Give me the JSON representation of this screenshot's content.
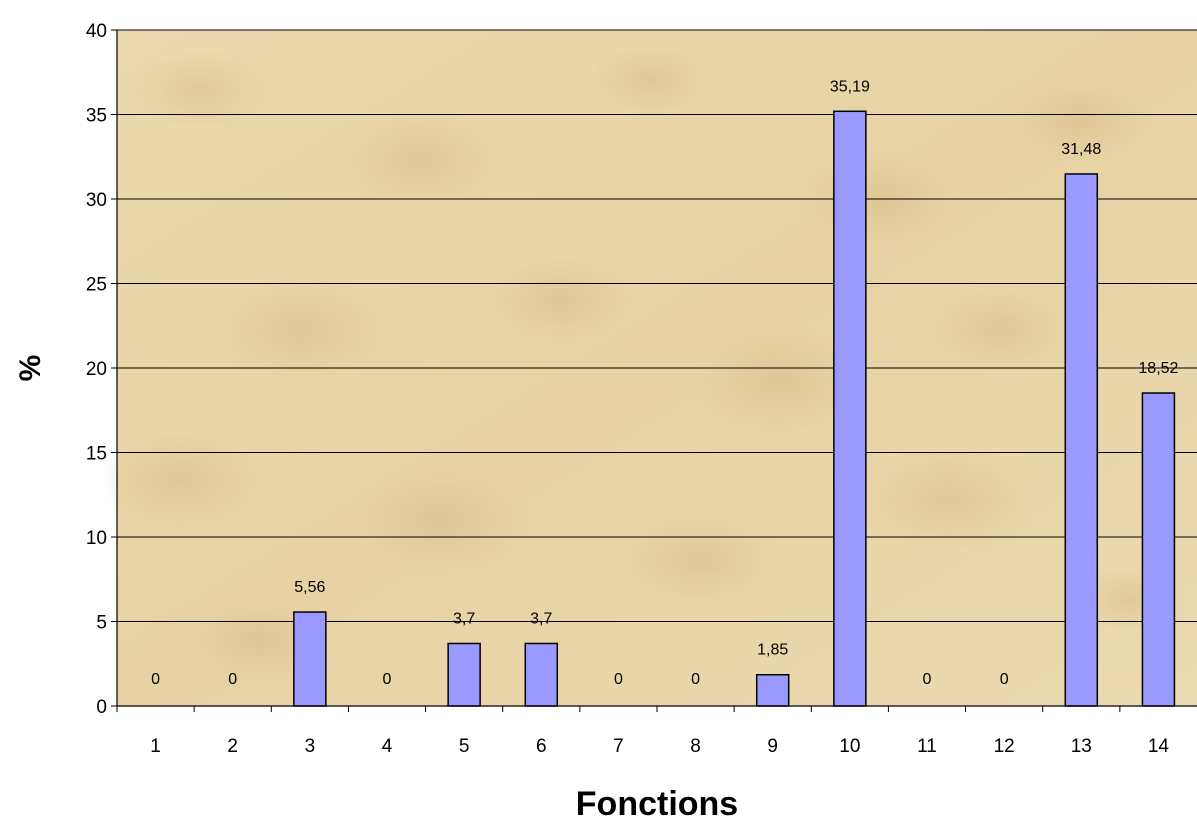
{
  "chart_data": {
    "type": "bar",
    "categories": [
      "1",
      "2",
      "3",
      "4",
      "5",
      "6",
      "7",
      "8",
      "9",
      "10",
      "11",
      "12",
      "13",
      "14"
    ],
    "values": [
      0,
      0,
      5.56,
      0,
      3.7,
      3.7,
      0,
      0,
      1.85,
      35.19,
      0,
      0,
      31.48,
      18.52
    ],
    "data_labels": [
      "0",
      "0",
      "5,56",
      "0",
      "3,7",
      "3,7",
      "0",
      "0",
      "1,85",
      "35,19",
      "0",
      "0",
      "31,48",
      "18,52"
    ],
    "y_ticks": [
      "0",
      "5",
      "10",
      "15",
      "20",
      "25",
      "30",
      "35",
      "40"
    ],
    "xlabel": "Fonctions",
    "ylabel": "%",
    "ylim": [
      0,
      40
    ],
    "grid": true,
    "bar_color": "#9999ff",
    "bar_border": "#000000",
    "plot_background": "#ead7ad"
  }
}
